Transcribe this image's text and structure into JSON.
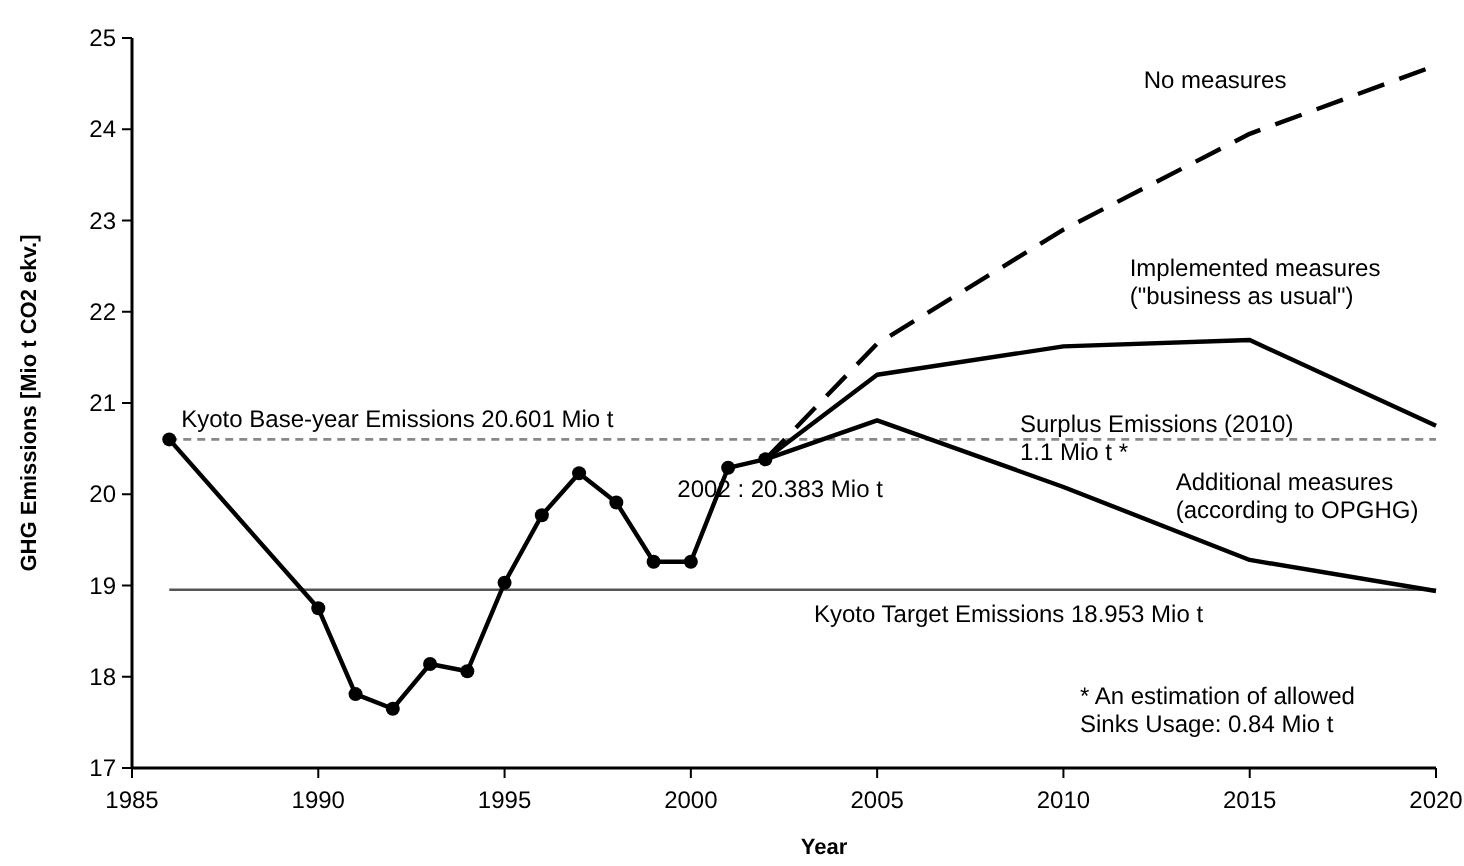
{
  "chart_data": {
    "type": "line",
    "xlabel": "Year",
    "ylabel": "GHG Emissions [Mio t CO2 ekv.]",
    "xlim": [
      1985,
      2020
    ],
    "xticks": [
      1985,
      1990,
      1995,
      2000,
      2005,
      2010,
      2015,
      2020
    ],
    "ylim": [
      17,
      25
    ],
    "yticks": [
      17,
      18,
      19,
      20,
      21,
      22,
      23,
      24,
      25
    ],
    "grid": false,
    "series": [
      {
        "color": "#000000",
        "marker": "circle",
        "line_style": "solid",
        "x": [
          1986,
          1990,
          1991,
          1992,
          1993,
          1994,
          1995,
          1996,
          1997,
          1998,
          1999,
          2000,
          2001,
          2002
        ],
        "values": [
          20.601,
          18.75,
          17.81,
          17.65,
          18.14,
          18.06,
          19.03,
          19.77,
          20.23,
          19.91,
          19.26,
          19.26,
          20.29,
          20.383
        ]
      },
      {
        "name": "No measures",
        "color": "#000000",
        "marker": "none",
        "line_style": "dashed",
        "x": [
          2002,
          2005,
          2010,
          2015,
          2020
        ],
        "values": [
          20.383,
          21.65,
          22.9,
          23.95,
          24.7
        ]
      },
      {
        "name": "Implemented measures\n(\"business as usual\")",
        "color": "#000000",
        "marker": "none",
        "line_style": "solid",
        "x": [
          2002,
          2005,
          2010,
          2015,
          2020
        ],
        "values": [
          20.383,
          21.31,
          21.62,
          21.69,
          20.75
        ]
      },
      {
        "name": "Additional measures\n(according to OPGHG)",
        "color": "#000000",
        "marker": "none",
        "line_style": "solid",
        "x": [
          2002,
          2005,
          2010,
          2015,
          2020
        ],
        "values": [
          20.383,
          20.81,
          20.08,
          19.28,
          18.94
        ]
      }
    ],
    "ref_lines": [
      {
        "axis": "y",
        "value": 20.601,
        "label": "Kyoto Base-year Emissions 20.601 Mio t",
        "line_style": "dashed",
        "color": "#888888"
      },
      {
        "axis": "y",
        "value": 18.953,
        "label": "Kyoto Target Emissions 18.953 Mio t",
        "line_style": "solid",
        "color": "#555555"
      }
    ],
    "annotations": [
      {
        "text": "2002 : 20.383 Mio t",
        "x": 2002,
        "y": 20.383
      },
      "Surplus Emissions (2010)\n1.1 Mio t *",
      "* An estimation of allowed\nSinks Usage: 0.84 Mio t"
    ]
  }
}
